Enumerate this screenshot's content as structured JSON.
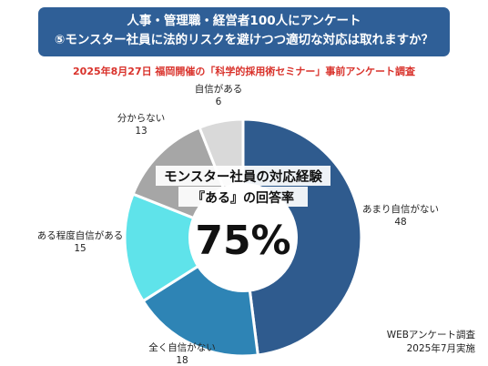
{
  "header": {
    "line1": "人事・管理職・経営者100人にアンケート",
    "line2": "⑤モンスター社員に法的リスクを避けつつ適切な対応は取れますか？",
    "bg_color": "#2f5f97"
  },
  "subtitle": "2025年8月27日 福岡開催の「科学的採用術セミナー」事前アンケート調査",
  "center": {
    "line1": "モンスター社員の対応経験",
    "line2": "『ある』の回答率",
    "value": "75%"
  },
  "source": {
    "line1": "WEBアンケート調査",
    "line2": "2025年7月実施"
  },
  "chart_data": {
    "type": "pie",
    "donut": true,
    "categories": [
      "あまり自信がない",
      "全く自信がない",
      "ある程度自信がある",
      "分からない",
      "自信がある"
    ],
    "values": [
      48,
      18,
      15,
      13,
      6
    ],
    "colors": [
      "#2f5b8e",
      "#2e84b5",
      "#5fe3ea",
      "#a6a6a6",
      "#d9d9d9"
    ]
  }
}
